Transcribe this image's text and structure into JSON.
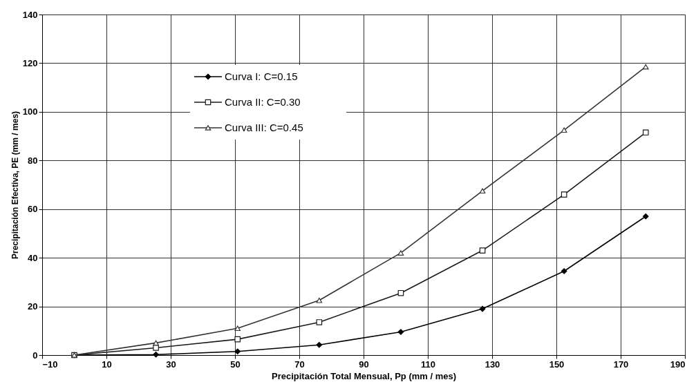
{
  "chart_data": {
    "type": "line",
    "xlabel": "Precipitación Total Mensual, Pp (mm / mes)",
    "ylabel": "Precipitación Efectiva, PE (mm / mes)",
    "x": [
      0,
      25.4,
      50.8,
      76.2,
      101.6,
      127,
      152.4,
      177.8
    ],
    "series": [
      {
        "name": "Curva I: C=0.15",
        "color": "#000000",
        "marker": "diamond",
        "values": [
          0,
          0.2,
          1.5,
          4.2,
          9.5,
          19,
          34.5,
          57
        ]
      },
      {
        "name": "Curva II: C=0.30",
        "color": "#1a1a1a",
        "marker": "square",
        "values": [
          0,
          3,
          6.5,
          13.5,
          25.5,
          43,
          66,
          91.5
        ]
      },
      {
        "name": "Curva III: C=0.45",
        "color": "#333333",
        "marker": "triangle",
        "values": [
          0,
          5,
          11,
          22.5,
          42,
          67.5,
          92.5,
          118.5
        ]
      }
    ],
    "xlim": [
      -10,
      190
    ],
    "xticks": [
      -10,
      10,
      30,
      50,
      70,
      90,
      110,
      130,
      150,
      170,
      190
    ],
    "ylim": [
      0,
      140
    ],
    "yticks": [
      0,
      20,
      40,
      60,
      80,
      100,
      120,
      140
    ],
    "grid": true,
    "legend": "top left",
    "line_style": "solid"
  }
}
